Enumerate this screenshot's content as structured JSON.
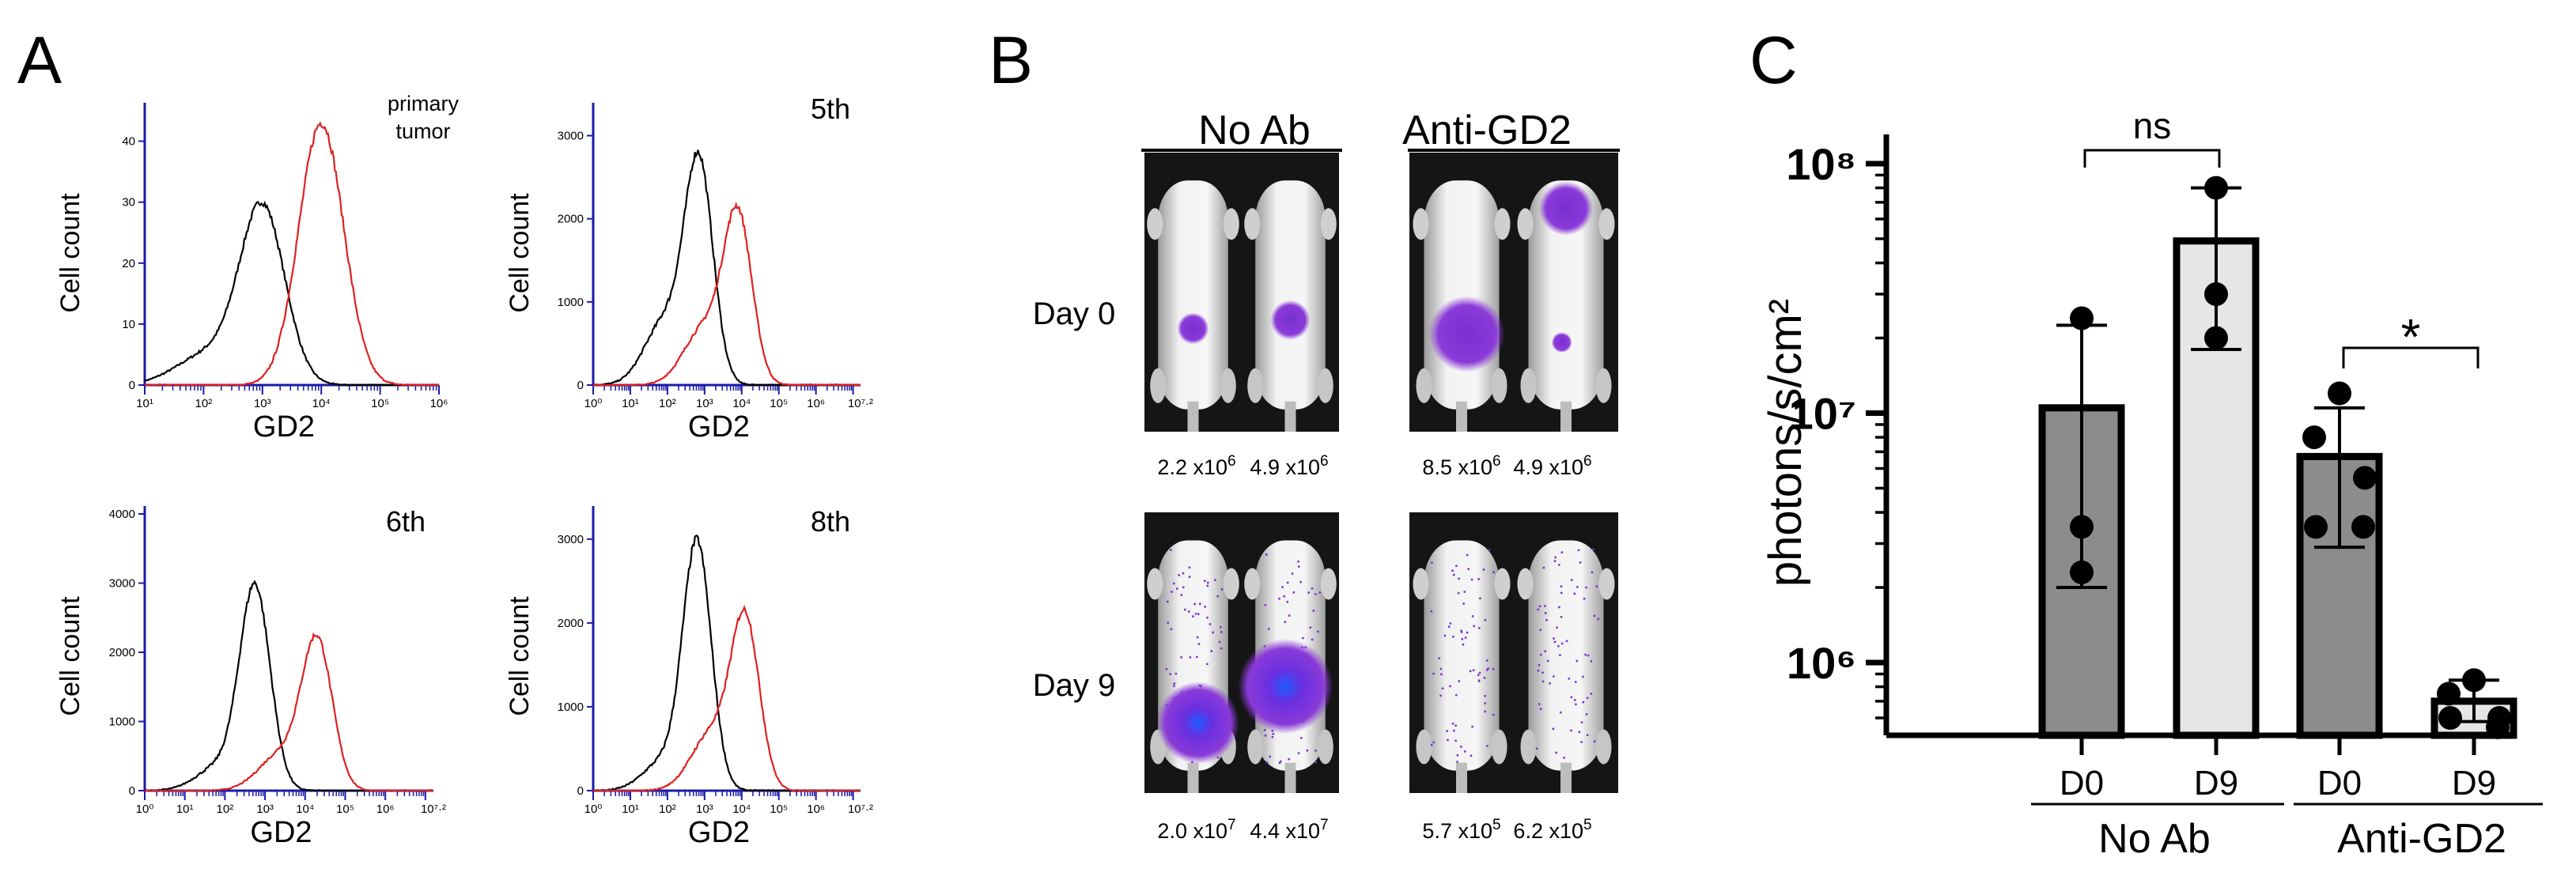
{
  "panel_letters": [
    "A",
    "B",
    "C"
  ],
  "colors": {
    "control": "#000000",
    "gd2": "#e02020",
    "axis": "#1a1aa8",
    "bar_dark": "#8c8c8c",
    "bar_light": "#e6e6e6",
    "bio_purple": "#7a2fd0",
    "bio_blue": "#1f5cff"
  },
  "panel_a": {
    "histograms": [
      {
        "title": "primary\ntumor",
        "title_lines": [
          "primary",
          "tumor"
        ],
        "ylabel": "Cell count",
        "xlabel": "GD2",
        "y_ticks": [
          "0",
          "10",
          "20",
          "30",
          "40"
        ],
        "x_ticks": [
          "10¹",
          "10²",
          "10³",
          "10⁴",
          "10⁵",
          "10⁶"
        ],
        "ymax": 45,
        "decades": 5,
        "control": {
          "center": 3.0,
          "peak": 30,
          "shoulder": 0.18
        },
        "gd2": {
          "center": 4.0,
          "peak": 43,
          "shoulder": 0.0
        }
      },
      {
        "title": "5th",
        "title_lines": [
          "5th"
        ],
        "ylabel": "Cell count",
        "xlabel": "GD2",
        "y_ticks": [
          "0",
          "1000",
          "2000",
          "3000"
        ],
        "x_ticks": [
          "10⁰",
          "10¹",
          "10²",
          "10³",
          "10⁴",
          "10⁵",
          "10⁶",
          "10⁷·²"
        ],
        "ymax": 3300,
        "decades": 7.2,
        "control": {
          "center": 2.85,
          "peak": 2800,
          "shoulder": 0.3
        },
        "gd2": {
          "center": 3.9,
          "peak": 2150,
          "shoulder": 0.35
        }
      },
      {
        "title": "6th",
        "title_lines": [
          "6th"
        ],
        "ylabel": "Cell count",
        "xlabel": "GD2",
        "y_ticks": [
          "0",
          "1000",
          "2000",
          "3000",
          "4000"
        ],
        "x_ticks": [
          "10⁰",
          "10¹",
          "10²",
          "10³",
          "10⁴",
          "10⁵",
          "10⁶",
          "10⁷·²"
        ],
        "ymax": 4000,
        "decades": 7.2,
        "control": {
          "center": 2.75,
          "peak": 3000,
          "shoulder": 0.12
        },
        "gd2": {
          "center": 4.3,
          "peak": 2250,
          "shoulder": 0.25
        }
      },
      {
        "title": "8th",
        "title_lines": [
          "8th"
        ],
        "ylabel": "Cell count",
        "xlabel": "GD2",
        "y_ticks": [
          "0",
          "1000",
          "2000",
          "3000"
        ],
        "x_ticks": [
          "10⁰",
          "10¹",
          "10²",
          "10³",
          "10⁴",
          "10⁵",
          "10⁶",
          "10⁷·²"
        ],
        "ymax": 3300,
        "decades": 7.2,
        "control": {
          "center": 2.8,
          "peak": 3000,
          "shoulder": 0.12
        },
        "gd2": {
          "center": 4.1,
          "peak": 2150,
          "shoulder": 0.35
        }
      }
    ]
  },
  "panel_b": {
    "group_labels": [
      "No Ab",
      "Anti-GD2"
    ],
    "day_labels": [
      "Day 0",
      "Day 9"
    ],
    "values": [
      [
        "2.2 x10",
        "6",
        "4.9 x10",
        "6",
        "8.5 x10",
        "6",
        "4.9 x10",
        "6"
      ],
      [
        "2.0 x10",
        "7",
        "4.4 x10",
        "7",
        "5.7 x10",
        "5",
        "6.2 x10",
        "5"
      ]
    ]
  },
  "chart_data": {
    "type": "bar",
    "ylabel": "photons/s/cm²",
    "yscale": "log",
    "ylim": [
      500000,
      200000000
    ],
    "y_ticks": [
      "10⁸",
      "10⁷",
      "10⁶"
    ],
    "categories": [
      "D0",
      "D9",
      "D0",
      "D9"
    ],
    "groups": [
      "No Ab",
      "Anti-GD2"
    ],
    "values": [
      10500000,
      49000000,
      6700000,
      700000
    ],
    "errors_upper": [
      22500000,
      80000000,
      10500000,
      850000
    ],
    "errors_lower": [
      2000000,
      18000000,
      2900000,
      580000
    ],
    "points": [
      [
        24000000,
        3500000,
        2300000
      ],
      [
        80000000,
        30000000,
        20000000
      ],
      [
        12000000,
        8000000,
        5500000,
        3500000,
        3500000
      ],
      [
        850000,
        750000,
        600000,
        600000,
        550000
      ]
    ],
    "significance": [
      {
        "between": [
          0,
          1
        ],
        "label": "ns"
      },
      {
        "between": [
          2,
          3
        ],
        "label": "*"
      }
    ]
  }
}
